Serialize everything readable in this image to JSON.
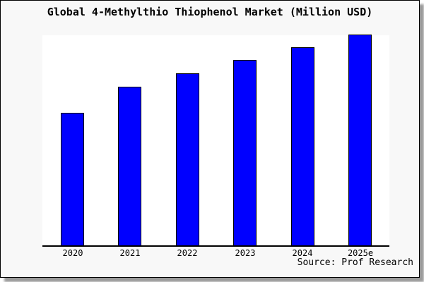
{
  "title": "Global 4-Methylthio Thiophenol Market (Million USD)",
  "source_note": "Source: Prof Research",
  "colors": {
    "bar_fill": "#0000ff",
    "bar_outline": "#000000",
    "panel_background": "#f8f8f8",
    "plot_background": "#ffffff",
    "axis_line": "#000000",
    "shadow": "#9a9a9a",
    "text": "#000000"
  },
  "chart_data": {
    "type": "bar",
    "title": "Global 4-Methylthio Thiophenol Market (Million USD)",
    "categories": [
      "2020",
      "2021",
      "2022",
      "2023",
      "2024",
      "2025e"
    ],
    "values": [
      62.9,
      75.3,
      81.6,
      88.0,
      94.0,
      100.0
    ],
    "values_note": "No y-axis or data labels are shown; values are relative heights estimated from the bars with 2025e = 100.",
    "xlabel": "",
    "ylabel": "",
    "ylim": [
      0,
      100.3
    ],
    "grid": false,
    "legend": false,
    "axis_lines": "bottom only",
    "source_note": "Source: Prof Research"
  }
}
